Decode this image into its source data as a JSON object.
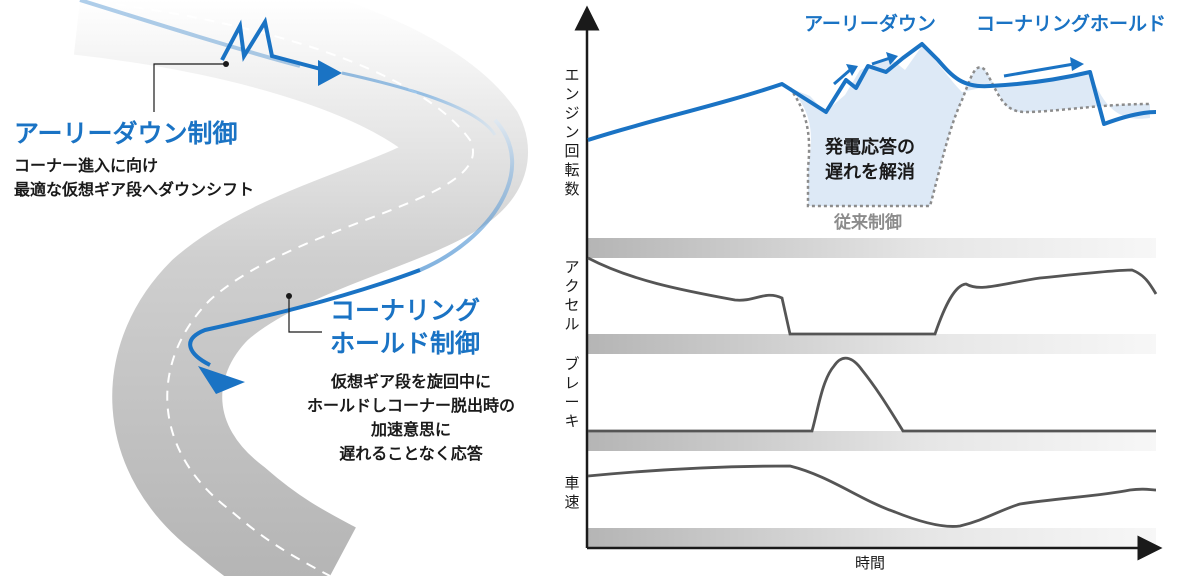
{
  "left": {
    "early_down": {
      "title": "アーリーダウン制御",
      "desc_lines": [
        "コーナー進入に向け",
        "最適な仮想ギア段へダウンシフト"
      ]
    },
    "cornering_hold": {
      "title_lines": [
        "コーナリング",
        "ホールド制御"
      ],
      "desc_lines": [
        "仮想ギア段を旋回中に",
        "ホールドしコーナー脱出時の",
        "加速意思に",
        "遅れることなく応答"
      ]
    }
  },
  "chart": {
    "y_labels": {
      "engine": [
        "エ",
        "ン",
        "ジ",
        "ン",
        "回",
        "転",
        "数"
      ],
      "accel": [
        "ア",
        "ク",
        "セ",
        "ル"
      ],
      "brake": [
        "ブ",
        "レ",
        "ー",
        "キ"
      ],
      "speed": [
        "車",
        "速"
      ]
    },
    "x_label": "時間",
    "annotations": {
      "early_down": "アーリーダウン",
      "cornering_hold": "コーナリングホールド",
      "delay_lines": [
        "発電応答の",
        "遅れを解消"
      ],
      "conventional": "従来制御"
    }
  },
  "colors": {
    "accent_blue": "#1a73c4",
    "conventional_grey": "#8c8c8c",
    "fill_lightblue": "#dde9f6",
    "trace_grey": "#555555"
  }
}
